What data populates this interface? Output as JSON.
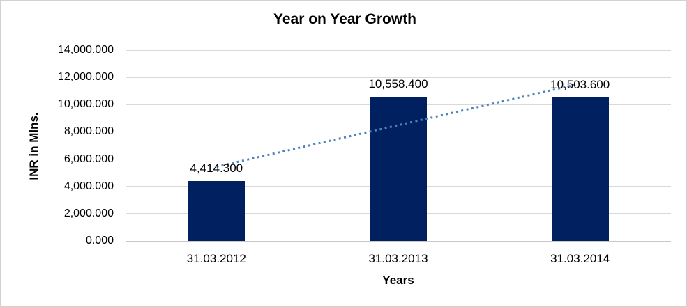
{
  "chart_data": {
    "type": "bar",
    "title": "Year on Year Growth",
    "xlabel": "Years",
    "ylabel": "INR in Mlns.",
    "categories": [
      "31.03.2012",
      "31.03.2013",
      "31.03.2014"
    ],
    "values": [
      4414.3,
      10558.4,
      10503.6
    ],
    "data_labels": [
      "4,414.300",
      "10,558.400",
      "10,503.600"
    ],
    "ylim": [
      0,
      14000
    ],
    "ytick_step": 2000,
    "ytick_labels": [
      "0.000",
      "2,000.000",
      "4,000.000",
      "6,000.000",
      "8,000.000",
      "10,000.000",
      "12,000.000",
      "14,000.000"
    ],
    "grid": true,
    "legend": "none",
    "trendline": {
      "type": "linear",
      "style": "dotted"
    },
    "colors": {
      "bar": "#002060",
      "trendline": "#4f81bd",
      "gridline": "#d9d9d9",
      "axis_line": "#c8c8c8",
      "text": "#000000",
      "frame_border": "#d2d2d2"
    }
  }
}
